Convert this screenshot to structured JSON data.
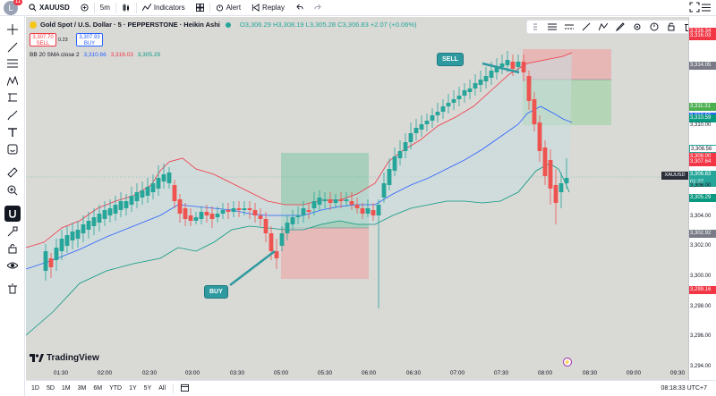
{
  "topbar": {
    "avatar_letter": "L",
    "avatar_badge": "11",
    "symbol": "XAUUSD",
    "interval": "5m",
    "indicators_label": "Indicators",
    "alert_label": "Alert",
    "replay_label": "Replay"
  },
  "legend": {
    "title": "Gold Spot / U.S. Dollar · 5 · PEPPERSTONE · Heikin Ashi",
    "ohlc": "O3,306.29  H3,308.19  L3,305.28  C3,306.83  +2.07 (+0.06%)",
    "sell_price": "3,307.70",
    "sell_label": "SELL",
    "spread": "0.23",
    "buy_price": "3,307.93",
    "buy_label": "BUY",
    "bb_name": "BB 20 SMA close 2",
    "bb_basis": "3,310.66",
    "bb_upper": "3,316.03",
    "bb_lower": "3,305.29"
  },
  "annotations": {
    "sell": "SELL",
    "buy": "BUY"
  },
  "colors": {
    "up": "#26a69a",
    "down": "#ef5350",
    "basis": "#2962ff",
    "upper": "#f23645",
    "lower": "#089981",
    "background": "#d9d9d6"
  },
  "axis": {
    "ticks": [
      "3,316.34",
      "3,316.03",
      "3,314.05",
      "3,311.31",
      "3,310.66",
      "3,310.59",
      "3,310.00",
      "3,308.56",
      "3,308.00",
      "3,307.64",
      "3,306.83",
      "01:27",
      "3,306.00",
      "3,305.29",
      "3,304.00",
      "3,302.92",
      "3,302.00",
      "3,300.00",
      "3,299.16",
      "3,298.00",
      "3,296.00",
      "3,294.00"
    ],
    "current_symbol": "XAUUSD"
  },
  "time_labels": [
    "01:30",
    "02:00",
    "02:30",
    "03:00",
    "03:30",
    "05:00",
    "05:30",
    "06:00",
    "06:30",
    "07:00",
    "07:30",
    "08:00",
    "08:30",
    "09:00",
    "09:30"
  ],
  "bottombar": {
    "ranges": [
      "1D",
      "5D",
      "1M",
      "3M",
      "6M",
      "YTD",
      "1Y",
      "5Y",
      "All"
    ],
    "clock": "08:18:33 UTC+7"
  },
  "brand": "TradingView",
  "icons": [
    "crosshair-icon",
    "trendline-icon",
    "fib-icon",
    "pattern-icon",
    "prediction-icon",
    "brush-icon",
    "text-icon",
    "emoji-icon",
    "ruler-icon",
    "zoom-icon",
    "magnet-icon",
    "lock-drawing-icon",
    "lock-icon",
    "eye-icon",
    "trash-icon"
  ]
}
